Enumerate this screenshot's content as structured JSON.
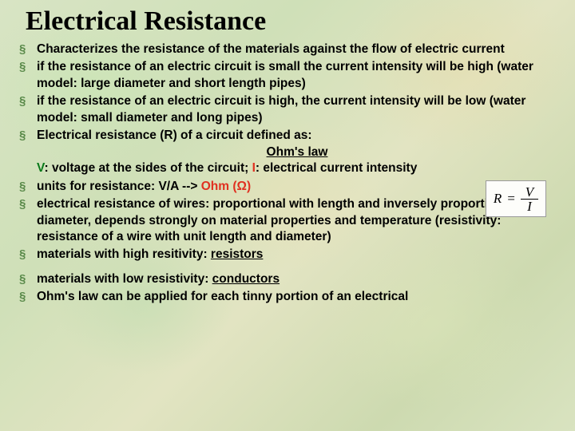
{
  "title": "Electrical Resistance",
  "bullets": {
    "b1": "Characterizes the resistance of the materials against the flow of electric current",
    "b2": "if the resistance of an electric circuit is small the current intensity will be high (water model: large diameter and short length pipes)",
    "b3": "if the resistance of an electric circuit is high, the current intensity will be low (water model: small diameter and long pipes)",
    "b4a": "Electrical resistance (R) of a circuit defined as:",
    "b4_center": "Ohm's law",
    "b4_v": "V",
    "b4_vd": ": voltage at the sides of the circuit; ",
    "b4_i": "I",
    "b4_id": ": electrical current  intensity",
    "b5a": "units for resistance: V/A --> ",
    "b5b": "Ohm (",
    "b5c": "Ω",
    "b5d": ")",
    "b6": "electrical resistance of wires: proportional with length and inversely proportional with diameter, depends strongly on material properties and temperature (resistivity: resistance of a wire with unit length and diameter)",
    "b7a": "materials with high resitivity: ",
    "b7b": "resistors",
    "b8a": "materials with low resistivity: ",
    "b8b": "conductors",
    "b9": "Ohm's law can be applied for each tinny portion of an electrical"
  },
  "formula": {
    "lhs": "R",
    "eq": "=",
    "num": "V",
    "den": "I"
  },
  "style": {
    "title_fontsize": 34,
    "body_fontsize": 15.5,
    "bullet_glyph_color": "#5a8a4a",
    "v_color": "#0a7a1a",
    "i_color": "#e03020",
    "ohm_color": "#e03020",
    "formula_border": "#9a9a9a",
    "formula_bg": "#fdfdfa",
    "background_gradient": [
      "#d8e4c4",
      "#cfe0b8",
      "#e2e4c2",
      "#cddab0",
      "#d9e3c0"
    ]
  }
}
